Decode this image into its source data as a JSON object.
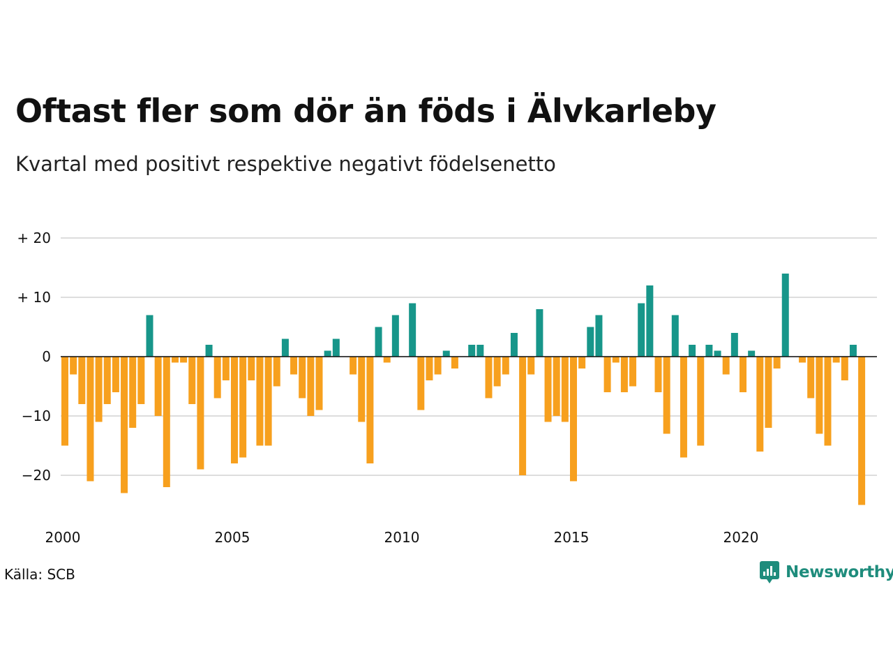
{
  "header": {
    "title": "Oftast fler som dör än föds i Älvkarleby",
    "subtitle": "Kvartal med positivt respektive negativt födelsenetto"
  },
  "footer": {
    "source": "Källa: SCB",
    "brand": "Newsworthy",
    "brand_icon": "newsworthy-logo-icon"
  },
  "colors": {
    "positive": "#17968a",
    "negative": "#f7a01e",
    "grid": "#dddddd",
    "brand": "#1e8c7c"
  },
  "chart_data": {
    "type": "bar",
    "start_year": 2000,
    "period": "quarter",
    "values": [
      -15,
      -3,
      -8,
      -21,
      -11,
      -8,
      -6,
      -23,
      -12,
      -8,
      7,
      -10,
      -22,
      -1,
      -1,
      -8,
      -19,
      2,
      -7,
      -4,
      -18,
      -17,
      -4,
      -15,
      -15,
      -5,
      3,
      -3,
      -7,
      -10,
      -9,
      1,
      3,
      0,
      -3,
      -11,
      -18,
      5,
      -1,
      7,
      0,
      9,
      -9,
      -4,
      -3,
      1,
      -2,
      0,
      2,
      2,
      -7,
      -5,
      -3,
      4,
      -20,
      -3,
      8,
      -11,
      -10,
      -11,
      -21,
      -2,
      5,
      7,
      -6,
      -1,
      -6,
      -5,
      9,
      12,
      -6,
      -13,
      7,
      -17,
      2,
      -15,
      2,
      1,
      -3,
      4,
      -6,
      1,
      -16,
      -12,
      -2,
      14,
      0,
      -1,
      -7,
      -13,
      -15,
      -1,
      -4,
      2,
      -25
    ],
    "x_ticks": [
      "2000",
      "2005",
      "2010",
      "2015",
      "2020"
    ],
    "y_ticks": [
      {
        "value": 20,
        "label": "+ 20"
      },
      {
        "value": 10,
        "label": "+ 10"
      },
      {
        "value": 0,
        "label": "0"
      },
      {
        "value": -10,
        "label": "−10"
      },
      {
        "value": -20,
        "label": "−20"
      }
    ],
    "ylim": [
      -27,
      20
    ],
    "grid": true,
    "legend": "none"
  }
}
